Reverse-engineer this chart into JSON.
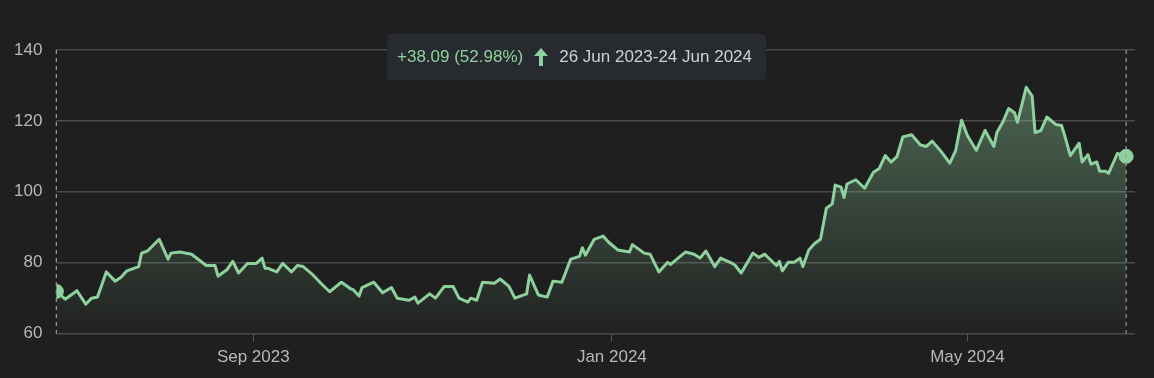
{
  "chart_data": {
    "type": "area",
    "annotations": [
      "+38.09 (52.98%)",
      "26 Jun 2023-24 Jun 2024"
    ],
    "x": [
      "2023-06-26",
      "2023-06-29",
      "2023-07-03",
      "2023-07-06",
      "2023-07-08",
      "2023-07-10",
      "2023-07-13",
      "2023-07-16",
      "2023-07-18",
      "2023-07-20",
      "2023-07-24",
      "2023-07-25",
      "2023-07-27",
      "2023-07-31",
      "2023-08-03",
      "2023-08-04",
      "2023-08-07",
      "2023-08-11",
      "2023-08-16",
      "2023-08-19",
      "2023-08-20",
      "2023-08-23",
      "2023-08-25",
      "2023-08-27",
      "2023-08-30",
      "2023-09-02",
      "2023-09-04",
      "2023-09-05",
      "2023-09-06",
      "2023-09-09",
      "2023-09-11",
      "2023-09-14",
      "2023-09-16",
      "2023-09-18",
      "2023-09-21",
      "2023-09-24",
      "2023-09-27",
      "2023-10-01",
      "2023-10-04",
      "2023-10-05",
      "2023-10-07",
      "2023-10-08",
      "2023-10-12",
      "2023-10-15",
      "2023-10-18",
      "2023-10-20",
      "2023-10-24",
      "2023-10-26",
      "2023-10-27",
      "2023-10-31",
      "2023-11-02",
      "2023-11-05",
      "2023-11-08",
      "2023-11-10",
      "2023-11-13",
      "2023-11-14",
      "2023-11-16",
      "2023-11-18",
      "2023-11-22",
      "2023-11-24",
      "2023-11-27",
      "2023-11-29",
      "2023-12-03",
      "2023-12-04",
      "2023-12-07",
      "2023-12-10",
      "2023-12-12",
      "2023-12-15",
      "2023-12-18",
      "2023-12-21",
      "2023-12-22",
      "2023-12-23",
      "2023-12-26",
      "2023-12-29",
      "2023-12-31",
      "2024-01-03",
      "2024-01-07",
      "2024-01-08",
      "2024-01-12",
      "2024-01-14",
      "2024-01-17",
      "2024-01-20",
      "2024-01-21",
      "2024-01-26",
      "2024-01-29",
      "2024-01-31",
      "2024-02-02",
      "2024-02-05",
      "2024-02-07",
      "2024-02-11",
      "2024-02-12",
      "2024-02-14",
      "2024-02-18",
      "2024-02-20",
      "2024-02-22",
      "2024-02-26",
      "2024-02-27",
      "2024-02-28",
      "2024-03-01",
      "2024-03-03",
      "2024-03-05",
      "2024-03-06",
      "2024-03-08",
      "2024-03-10",
      "2024-03-12",
      "2024-03-14",
      "2024-03-16",
      "2024-03-17",
      "2024-03-19",
      "2024-03-20",
      "2024-03-21",
      "2024-03-24",
      "2024-03-27",
      "2024-03-30",
      "2024-04-01",
      "2024-04-03",
      "2024-04-05",
      "2024-04-07",
      "2024-04-09",
      "2024-04-12",
      "2024-04-15",
      "2024-04-17",
      "2024-04-19",
      "2024-04-22",
      "2024-04-25",
      "2024-04-27",
      "2024-04-29",
      "2024-05-01",
      "2024-05-04",
      "2024-05-07",
      "2024-05-10",
      "2024-05-11",
      "2024-05-13",
      "2024-05-15",
      "2024-05-17",
      "2024-05-18",
      "2024-05-21",
      "2024-05-23",
      "2024-05-24",
      "2024-05-26",
      "2024-05-28",
      "2024-05-31",
      "2024-06-02",
      "2024-06-03",
      "2024-06-05",
      "2024-06-08",
      "2024-06-09",
      "2024-06-11",
      "2024-06-12",
      "2024-06-14",
      "2024-06-15",
      "2024-06-17",
      "2024-06-18",
      "2024-06-21",
      "2024-06-24"
    ],
    "series": [
      {
        "color": "#8fd19e",
        "values": [
          71.9,
          69.7,
          72.1,
          68.3,
          70.0,
          70.3,
          77.4,
          74.8,
          75.9,
          77.7,
          78.9,
          82.7,
          83.3,
          86.6,
          81.0,
          82.7,
          83.0,
          82.4,
          79.2,
          79.2,
          76.2,
          78.0,
          80.4,
          77.1,
          79.8,
          79.8,
          81.3,
          78.4,
          78.4,
          77.4,
          79.8,
          77.4,
          79.2,
          78.9,
          76.8,
          74.2,
          71.8,
          74.5,
          72.7,
          72.4,
          70.6,
          73.0,
          74.5,
          71.5,
          73.0,
          70.0,
          69.4,
          70.3,
          68.6,
          71.2,
          70.0,
          73.3,
          73.3,
          70.0,
          68.9,
          70.0,
          69.4,
          74.5,
          74.2,
          75.4,
          73.3,
          70.0,
          71.2,
          76.5,
          70.9,
          70.3,
          74.8,
          74.5,
          81.0,
          81.8,
          84.2,
          82.1,
          86.6,
          87.5,
          85.7,
          83.6,
          83.0,
          85.1,
          82.7,
          82.4,
          77.4,
          80.1,
          79.5,
          83.0,
          82.4,
          81.3,
          83.3,
          78.9,
          81.3,
          79.8,
          79.2,
          77.1,
          82.7,
          81.5,
          82.4,
          79.2,
          80.4,
          77.7,
          80.1,
          80.1,
          81.3,
          78.9,
          83.6,
          85.4,
          86.6,
          95.4,
          96.6,
          101.9,
          101.3,
          98.4,
          102.2,
          103.4,
          101.0,
          105.5,
          106.6,
          110.2,
          108.4,
          109.9,
          115.5,
          116.1,
          113.2,
          112.8,
          114.3,
          111.4,
          108.1,
          111.7,
          120.2,
          115.8,
          111.7,
          117.3,
          112.8,
          116.7,
          119.6,
          123.5,
          122.3,
          119.6,
          129.5,
          127.0,
          116.7,
          117.3,
          121.1,
          119.0,
          118.7,
          116.1,
          110.2,
          113.7,
          108.4,
          110.5,
          107.8,
          108.4,
          105.8,
          105.8,
          105.2,
          110.8,
          110.0
        ]
      },
      {
        "type": "scatter",
        "marker": "circle",
        "color": "#8fd19e",
        "x": [
          "2023-06-26",
          "2024-06-24"
        ],
        "values": [
          71.9,
          110.0
        ]
      }
    ],
    "xlim": [
      "2023-06-26",
      "2024-06-27"
    ],
    "xticks": [
      {
        "value": "2023-09-01",
        "label": "Sep 2023"
      },
      {
        "value": "2024-01-01",
        "label": "Jan 2024"
      },
      {
        "value": "2024-05-01",
        "label": "May 2024"
      }
    ],
    "ylim": [
      60,
      140
    ],
    "yticks": [
      60,
      80,
      100,
      120,
      140
    ],
    "grid": "y",
    "legend": false,
    "ref_lines": [
      {
        "axis": "x",
        "value": "2023-06-26",
        "label": null,
        "color": "#9a9a9a",
        "line_style": "dashed"
      },
      {
        "axis": "x",
        "value": "2024-06-24",
        "label": null,
        "color": "#9a9a9a",
        "line_style": "dashed"
      }
    ]
  }
}
